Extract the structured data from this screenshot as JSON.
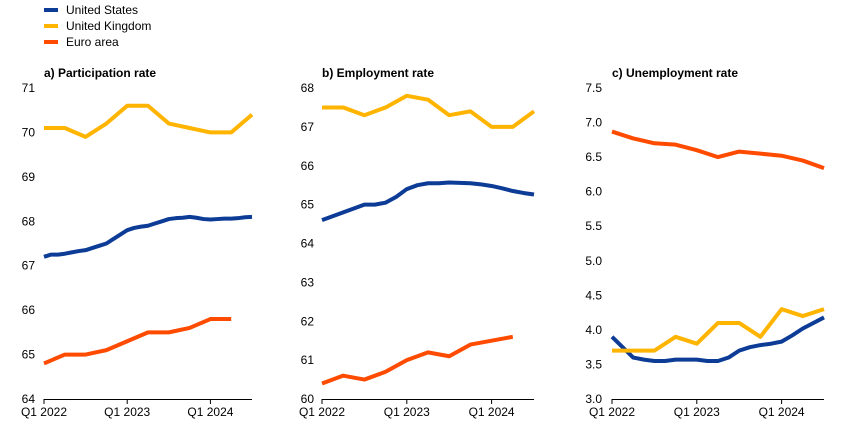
{
  "legend": [
    {
      "name": "United States",
      "color": "#0d3c96"
    },
    {
      "name": "United Kingdom",
      "color": "#ffb400"
    },
    {
      "name": "Euro area",
      "color": "#ff4b00"
    }
  ],
  "chart_data": [
    {
      "type": "line",
      "title": "a) Participation rate",
      "xlabel": "",
      "ylabel": "",
      "ylim": [
        64,
        71
      ],
      "yticks": [
        "64",
        "65",
        "66",
        "67",
        "68",
        "69",
        "70",
        "71"
      ],
      "xticks": [
        "Q1 2022",
        "Q1 2023",
        "Q1 2024"
      ],
      "x_periods": [
        "Q1 2022",
        "Q2 2022",
        "Q3 2022",
        "Q4 2022",
        "Q1 2023",
        "Q2 2023",
        "Q3 2023",
        "Q4 2023",
        "Q1 2024",
        "Q2 2024",
        "Q3 2024"
      ],
      "grid": false,
      "series": [
        {
          "name": "United States",
          "color": "#0d3c96",
          "x": [
            0,
            0.33,
            0.67,
            1,
            1.33,
            1.67,
            2,
            2.33,
            2.67,
            3,
            3.33,
            3.67,
            4,
            4.33,
            4.67,
            5,
            5.33,
            5.67,
            6,
            6.33,
            6.67,
            7,
            7.33,
            7.67,
            8,
            8.33,
            8.67,
            9,
            9.33,
            9.67,
            10
          ],
          "values": [
            67.2,
            67.25,
            67.25,
            67.27,
            67.3,
            67.33,
            67.35,
            67.4,
            67.45,
            67.5,
            67.6,
            67.7,
            67.8,
            67.85,
            67.88,
            67.9,
            67.95,
            68.0,
            68.05,
            68.07,
            68.08,
            68.1,
            68.08,
            68.05,
            68.04,
            68.05,
            68.06,
            68.06,
            68.07,
            68.09,
            68.1
          ]
        },
        {
          "name": "United Kingdom",
          "color": "#ffb400",
          "x": [
            0,
            1,
            2,
            3,
            4,
            5,
            6,
            7,
            8,
            9,
            10
          ],
          "values": [
            70.1,
            70.1,
            69.9,
            70.2,
            70.6,
            70.6,
            70.2,
            70.1,
            70.0,
            70.0,
            70.4
          ]
        },
        {
          "name": "Euro area",
          "color": "#ff4b00",
          "x": [
            0,
            1,
            2,
            3,
            4,
            5,
            6,
            7,
            8,
            9
          ],
          "values": [
            64.8,
            65.0,
            65.0,
            65.1,
            65.3,
            65.5,
            65.5,
            65.6,
            65.8,
            65.8
          ]
        }
      ]
    },
    {
      "type": "line",
      "title": "b) Employment rate",
      "xlabel": "",
      "ylabel": "",
      "ylim": [
        60,
        68
      ],
      "yticks": [
        "60",
        "61",
        "62",
        "63",
        "64",
        "65",
        "66",
        "67",
        "68"
      ],
      "xticks": [
        "Q1 2022",
        "Q1 2023",
        "Q1 2024"
      ],
      "x_periods": [
        "Q1 2022",
        "Q2 2022",
        "Q3 2022",
        "Q4 2022",
        "Q1 2023",
        "Q2 2023",
        "Q3 2023",
        "Q4 2023",
        "Q1 2024",
        "Q2 2024",
        "Q3 2024"
      ],
      "grid": false,
      "series": [
        {
          "name": "United States",
          "color": "#0d3c96",
          "x": [
            0,
            0.5,
            1,
            1.5,
            2,
            2.5,
            3,
            3.5,
            4,
            4.5,
            5,
            5.5,
            6,
            6.5,
            7,
            7.5,
            8,
            8.5,
            9,
            9.5,
            10
          ],
          "values": [
            64.6,
            64.7,
            64.8,
            64.9,
            65.0,
            65.0,
            65.05,
            65.2,
            65.4,
            65.5,
            65.55,
            65.55,
            65.57,
            65.56,
            65.55,
            65.52,
            65.48,
            65.42,
            65.35,
            65.3,
            65.26
          ]
        },
        {
          "name": "United Kingdom",
          "color": "#ffb400",
          "x": [
            0,
            1,
            2,
            3,
            4,
            5,
            6,
            7,
            8,
            9,
            10
          ],
          "values": [
            67.5,
            67.5,
            67.3,
            67.5,
            67.8,
            67.7,
            67.3,
            67.4,
            67.0,
            67.0,
            67.4
          ]
        },
        {
          "name": "Euro area",
          "color": "#ff4b00",
          "x": [
            0,
            1,
            2,
            3,
            4,
            5,
            6,
            7,
            8,
            9
          ],
          "values": [
            60.4,
            60.6,
            60.5,
            60.7,
            61.0,
            61.2,
            61.1,
            61.4,
            61.5,
            61.6
          ]
        }
      ]
    },
    {
      "type": "line",
      "title": "c) Unemployment rate",
      "xlabel": "",
      "ylabel": "",
      "ylim": [
        3.0,
        7.5
      ],
      "yticks": [
        "3.0",
        "3.5",
        "4.0",
        "4.5",
        "5.0",
        "5.5",
        "6.0",
        "6.5",
        "7.0",
        "7.5"
      ],
      "xticks": [
        "Q1 2022",
        "Q1 2023",
        "Q1 2024"
      ],
      "x_periods": [
        "Q1 2022",
        "Q2 2022",
        "Q3 2022",
        "Q4 2022",
        "Q1 2023",
        "Q2 2023",
        "Q3 2023",
        "Q4 2023",
        "Q1 2024",
        "Q2 2024",
        "Q3 2024"
      ],
      "grid": false,
      "series": [
        {
          "name": "United States",
          "color": "#0d3c96",
          "x": [
            0,
            0.5,
            1,
            1.5,
            2,
            2.5,
            3,
            3.5,
            4,
            4.5,
            5,
            5.5,
            6,
            6.5,
            7,
            7.5,
            8,
            8.5,
            9,
            9.5,
            10
          ],
          "values": [
            3.9,
            3.75,
            3.6,
            3.57,
            3.55,
            3.55,
            3.57,
            3.57,
            3.57,
            3.55,
            3.55,
            3.6,
            3.7,
            3.75,
            3.78,
            3.8,
            3.83,
            3.92,
            4.02,
            4.1,
            4.18
          ]
        },
        {
          "name": "United Kingdom",
          "color": "#ffb400",
          "x": [
            0,
            1,
            2,
            3,
            4,
            5,
            6,
            7,
            8,
            9,
            10
          ],
          "values": [
            3.7,
            3.7,
            3.7,
            3.9,
            3.8,
            4.1,
            4.1,
            3.9,
            4.3,
            4.2,
            4.3
          ]
        },
        {
          "name": "Euro area",
          "color": "#ff4b00",
          "x": [
            0,
            1,
            2,
            3,
            4,
            5,
            6,
            7,
            8,
            9,
            10
          ],
          "values": [
            6.87,
            6.77,
            6.7,
            6.68,
            6.6,
            6.5,
            6.58,
            6.55,
            6.52,
            6.45,
            6.34
          ]
        }
      ]
    }
  ]
}
